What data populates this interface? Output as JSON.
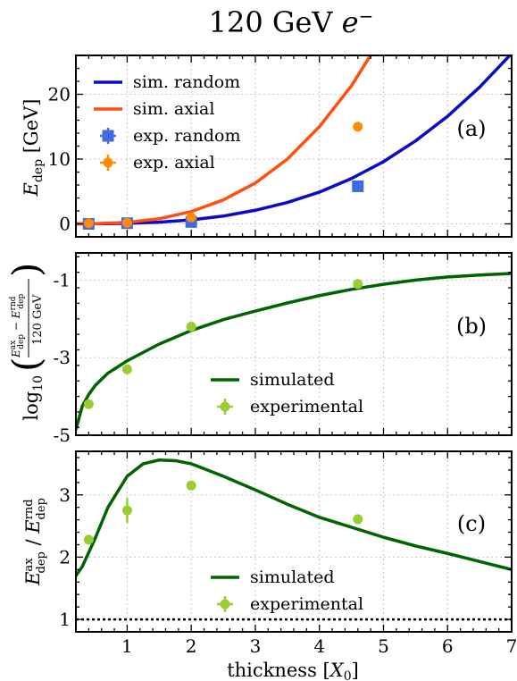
{
  "chart_data": {
    "title": "120 GeV e−",
    "xlabel": "thickness [X0]",
    "xlim": [
      0.2,
      7
    ],
    "xticks": [
      1,
      2,
      3,
      4,
      5,
      6,
      7
    ],
    "grid": true,
    "panels": [
      {
        "tag": "(a)",
        "type": "scatter+line",
        "ylabel": "E_dep [GeV]",
        "ylim": [
          -2,
          26
        ],
        "yticks": [
          0,
          10,
          20
        ],
        "legend_position": "upper-left",
        "series": [
          {
            "name": "sim. random",
            "kind": "line",
            "color": "#0a0ac8",
            "x": [
              0.2,
              0.5,
              1,
              1.5,
              2,
              2.5,
              3,
              3.5,
              4,
              4.5,
              5,
              5.5,
              6,
              6.5,
              7
            ],
            "y": [
              0,
              0.01,
              0.08,
              0.26,
              0.62,
              1.2,
              2.1,
              3.3,
              4.9,
              7,
              9.6,
              12.8,
              16.6,
              21.1,
              26.3
            ]
          },
          {
            "name": "sim. axial",
            "kind": "line",
            "color": "#ff4f0f",
            "x": [
              0.2,
              0.5,
              1,
              1.5,
              2,
              2.5,
              3,
              3.5,
              4,
              4.5,
              5,
              5.5
            ],
            "y": [
              0,
              0.03,
              0.23,
              0.79,
              1.9,
              3.7,
              6.3,
              10,
              15,
              21.3,
              29.2,
              38.9
            ]
          },
          {
            "name": "exp. random",
            "kind": "square",
            "color": "#4169e1",
            "x": [
              0.4,
              1.0,
              2.0,
              4.6
            ],
            "y": [
              0.0,
              0.1,
              0.3,
              5.8
            ]
          },
          {
            "name": "exp. axial",
            "kind": "circle",
            "color": "#ff8c00",
            "x": [
              0.4,
              1.0,
              2.0,
              4.6
            ],
            "y": [
              0.1,
              0.15,
              1.0,
              15.0
            ]
          }
        ]
      },
      {
        "tag": "(b)",
        "type": "scatter+line",
        "ylabel": "log10((E_dep^ax − E_dep^rnd) / 120 GeV)",
        "ylim": [
          -5,
          -0.3
        ],
        "yticks": [
          -5,
          -3,
          -1
        ],
        "legend_position": "lower-center",
        "series": [
          {
            "name": "simulated",
            "kind": "line",
            "color": "#006400",
            "x": [
              0.2,
              0.3,
              0.4,
              0.5,
              0.7,
              1,
              1.5,
              2,
              2.5,
              3,
              3.5,
              4,
              4.5,
              5,
              5.5,
              6,
              6.5,
              7
            ],
            "y": [
              -4.85,
              -4.25,
              -3.95,
              -3.72,
              -3.4,
              -3.08,
              -2.65,
              -2.3,
              -2.02,
              -1.8,
              -1.59,
              -1.4,
              -1.24,
              -1.11,
              -1.0,
              -0.92,
              -0.87,
              -0.83
            ]
          },
          {
            "name": "experimental",
            "kind": "circle",
            "color": "#9acd32",
            "x": [
              0.4,
              1.0,
              2.0,
              4.6
            ],
            "y": [
              -4.2,
              -3.3,
              -2.2,
              -1.1
            ]
          }
        ]
      },
      {
        "tag": "(c)",
        "type": "scatter+line",
        "ylabel": "E_dep^ax / E_dep^rnd",
        "ylim": [
          0.8,
          3.7
        ],
        "yticks": [
          1,
          2,
          3
        ],
        "legend_position": "lower-center",
        "reference_line": 1,
        "series": [
          {
            "name": "simulated",
            "kind": "line",
            "color": "#006400",
            "x": [
              0.2,
              0.3,
              0.5,
              0.7,
              1,
              1.25,
              1.5,
              1.75,
              2,
              2.5,
              3,
              3.5,
              4,
              4.5,
              5,
              5.5,
              6,
              6.5,
              7
            ],
            "y": [
              1.7,
              1.85,
              2.3,
              2.8,
              3.3,
              3.5,
              3.56,
              3.55,
              3.5,
              3.3,
              3.08,
              2.85,
              2.64,
              2.48,
              2.32,
              2.18,
              2.06,
              1.93,
              1.8
            ]
          },
          {
            "name": "experimental",
            "kind": "circle",
            "color": "#9acd32",
            "x": [
              0.4,
              1.0,
              2.0,
              4.6
            ],
            "y": [
              2.28,
              2.75,
              3.15,
              2.61
            ],
            "yerr": [
              0.06,
              0.2,
              0.05,
              0.05
            ]
          }
        ]
      }
    ]
  }
}
